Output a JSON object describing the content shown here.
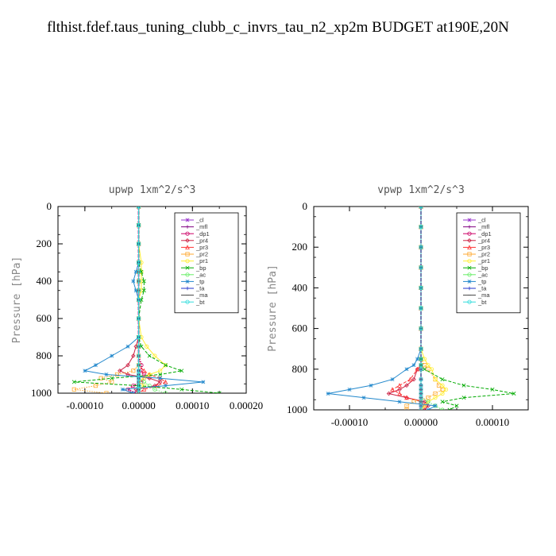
{
  "page": {
    "title": "flthist.fdef.taus_tuning_clubb_c_invrs_tau_n2_xp2m  BUDGET at190E,20N"
  },
  "chart_data": [
    {
      "type": "line",
      "title": "upwp   1xm^2/s^3",
      "xlabel": "",
      "ylabel": "Pressure [hPa]",
      "xlim": [
        -0.00015,
        0.0002
      ],
      "ylim": [
        1000,
        0
      ],
      "xticks": [
        -0.0001,
        0.0,
        0.0001,
        0.0002
      ],
      "xtick_labels": [
        "-0.00010",
        "0.00000",
        "0.00010",
        "0.00020"
      ],
      "yticks": [
        0,
        200,
        400,
        600,
        800,
        1000
      ],
      "ytick_labels": [
        "0",
        "200",
        "400",
        "600",
        "800",
        "1000"
      ],
      "legend_position": "top-right",
      "y": [
        0,
        100,
        200,
        300,
        350,
        400,
        450,
        500,
        600,
        700,
        750,
        800,
        850,
        880,
        900,
        920,
        940,
        960,
        980,
        1000
      ],
      "series": [
        {
          "name": "_cl",
          "color": "#9933cc",
          "values": [
            0,
            0,
            0,
            0,
            0,
            0,
            0,
            0,
            0,
            0,
            0,
            0,
            0,
            0,
            0,
            0,
            0,
            0,
            0,
            0
          ]
        },
        {
          "name": "_mfl",
          "color": "#800080",
          "values": [
            0,
            0,
            0,
            0,
            0,
            0,
            0,
            0,
            0,
            0,
            0,
            0,
            0,
            0,
            0,
            0,
            0,
            0,
            0,
            0
          ]
        },
        {
          "name": "_dp1",
          "color": "#cc0066",
          "values": [
            0,
            0,
            0,
            0,
            0,
            0,
            0,
            0,
            0,
            0,
            0,
            0,
            5e-06,
            5e-06,
            1e-05,
            1e-05,
            5e-06,
            -1e-05,
            -2e-05,
            -5e-06
          ]
        },
        {
          "name": "_pr4",
          "color": "#cc2244",
          "values": [
            0,
            0,
            0,
            0,
            0,
            0,
            0,
            0,
            0,
            0,
            -5e-06,
            -1e-05,
            -2e-05,
            -3.5e-05,
            -2e-05,
            2e-05,
            4e-05,
            3e-05,
            -5e-06,
            0
          ]
        },
        {
          "name": "_pr3",
          "color": "#ff3333",
          "values": [
            0,
            0,
            0,
            0,
            0,
            0,
            0,
            0,
            0,
            0,
            0,
            0,
            0,
            1e-05,
            2e-05,
            4e-05,
            5e-05,
            3.5e-05,
            1e-05,
            0
          ]
        },
        {
          "name": "_pr2",
          "color": "#ffaa33",
          "values": [
            0,
            0,
            0,
            0,
            0,
            0,
            0,
            0,
            0,
            0,
            0,
            0,
            0,
            -1e-05,
            -4e-05,
            -7e-05,
            -5e-05,
            -8e-05,
            -0.00012,
            -6e-05
          ]
        },
        {
          "name": "_pr1",
          "color": "#ffee33",
          "values": [
            0,
            0,
            0,
            5e-06,
            5e-06,
            5e-06,
            5e-06,
            0,
            0,
            5e-06,
            1.5e-05,
            3e-05,
            5e-05,
            4e-05,
            2e-05,
            1e-05,
            0,
            1e-05,
            0,
            0
          ]
        },
        {
          "name": "_bp",
          "color": "#00aa00",
          "values": [
            0,
            0,
            0,
            0,
            5e-06,
            1e-05,
            1e-05,
            5e-06,
            0,
            0,
            5e-06,
            2e-05,
            5e-05,
            8e-05,
            4e-05,
            -5e-05,
            -0.00012,
            0,
            8e-05,
            0.00015
          ]
        },
        {
          "name": "_ac",
          "color": "#66ee66",
          "values": [
            0,
            0,
            0,
            0,
            0,
            0,
            0,
            0,
            0,
            0,
            0,
            0,
            0,
            0,
            0,
            0,
            1e-05,
            2e-05,
            3e-05,
            5e-05
          ]
        },
        {
          "name": "_tp",
          "color": "#2288cc",
          "values": [
            0,
            0,
            0,
            0,
            -5e-06,
            -1e-05,
            -5e-06,
            0,
            0,
            0,
            -2e-05,
            -5e-05,
            -8e-05,
            -0.0001,
            -6e-05,
            4e-05,
            0.00012,
            5e-05,
            -3e-05,
            -1e-05
          ]
        },
        {
          "name": "_ta",
          "color": "#2233cc",
          "values": [
            0,
            0,
            0,
            0,
            0,
            0,
            0,
            0,
            0,
            0,
            0,
            0,
            0,
            0,
            0,
            0,
            0,
            0,
            0,
            0
          ]
        },
        {
          "name": "_ma",
          "color": "#444444",
          "values": [
            0,
            0,
            0,
            0,
            0,
            0,
            0,
            0,
            0,
            0,
            0,
            0,
            0,
            0,
            0,
            0,
            0,
            0,
            0,
            0
          ]
        },
        {
          "name": "_bt",
          "color": "#33dddd",
          "values": [
            0,
            0,
            0,
            0,
            0,
            0,
            0,
            0,
            0,
            0,
            0,
            0,
            0,
            0,
            0,
            0,
            0,
            0,
            0,
            0
          ]
        }
      ]
    },
    {
      "type": "line",
      "title": "vpwp   1xm^2/s^3",
      "xlabel": "",
      "ylabel": "Pressure [hPa]",
      "xlim": [
        -0.00015,
        0.00015
      ],
      "ylim": [
        1000,
        0
      ],
      "xticks": [
        -0.0001,
        0.0,
        0.0001
      ],
      "xtick_labels": [
        "-0.00010",
        "0.00000",
        "0.00010"
      ],
      "yticks": [
        0,
        200,
        400,
        600,
        800,
        1000
      ],
      "ytick_labels": [
        "0",
        "200",
        "400",
        "600",
        "800",
        "1000"
      ],
      "legend_position": "top-right",
      "y": [
        0,
        100,
        200,
        300,
        400,
        500,
        600,
        700,
        750,
        780,
        800,
        850,
        880,
        900,
        920,
        940,
        960,
        980,
        1000
      ],
      "series": [
        {
          "name": "_cl",
          "color": "#9933cc",
          "values": [
            0,
            0,
            0,
            0,
            0,
            0,
            0,
            0,
            0,
            0,
            0,
            0,
            0,
            0,
            0,
            0,
            0,
            0,
            0
          ]
        },
        {
          "name": "_mfl",
          "color": "#800080",
          "values": [
            0,
            0,
            0,
            0,
            0,
            0,
            0,
            0,
            0,
            0,
            0,
            0,
            0,
            0,
            0,
            0,
            0,
            0,
            0
          ]
        },
        {
          "name": "_dp1",
          "color": "#cc0066",
          "values": [
            0,
            0,
            0,
            0,
            0,
            0,
            0,
            0,
            0,
            0,
            0,
            0,
            0,
            0,
            0,
            0,
            0,
            0,
            0
          ]
        },
        {
          "name": "_pr4",
          "color": "#cc2244",
          "values": [
            0,
            0,
            0,
            0,
            0,
            0,
            0,
            0,
            0,
            0,
            -5e-06,
            -1e-05,
            -2e-05,
            -3e-05,
            -4.5e-05,
            -2e-05,
            5e-06,
            1e-05,
            5e-06
          ]
        },
        {
          "name": "_pr3",
          "color": "#ff3333",
          "values": [
            0,
            0,
            0,
            0,
            0,
            0,
            0,
            0,
            0,
            0,
            -5e-06,
            -1.5e-05,
            -3e-05,
            -4e-05,
            -3e-05,
            -2e-05,
            0,
            5e-06,
            0
          ]
        },
        {
          "name": "_pr2",
          "color": "#ffaa33",
          "values": [
            0,
            0,
            0,
            0,
            0,
            0,
            0,
            0,
            0,
            5e-06,
            1e-05,
            2e-05,
            2.5e-05,
            3e-05,
            2e-05,
            1e-05,
            -1e-05,
            -2e-05,
            -2e-05
          ]
        },
        {
          "name": "_pr1",
          "color": "#ffee33",
          "values": [
            0,
            0,
            0,
            0,
            0,
            0,
            0,
            0,
            5e-06,
            1e-05,
            1.5e-05,
            2e-05,
            3e-05,
            3.5e-05,
            3e-05,
            2e-05,
            1e-05,
            5e-06,
            0
          ]
        },
        {
          "name": "_bp",
          "color": "#00aa00",
          "values": [
            0,
            0,
            0,
            0,
            0,
            0,
            0,
            0,
            0,
            0,
            5e-06,
            3e-05,
            6e-05,
            0.0001,
            0.00013,
            6e-05,
            3e-05,
            5e-05,
            4e-05
          ]
        },
        {
          "name": "_ac",
          "color": "#66ee66",
          "values": [
            0,
            0,
            0,
            0,
            0,
            0,
            0,
            0,
            0,
            0,
            0,
            0,
            0,
            0,
            0,
            0,
            1e-05,
            2e-05,
            3e-05
          ]
        },
        {
          "name": "_tp",
          "color": "#2288cc",
          "values": [
            0,
            0,
            0,
            0,
            0,
            0,
            0,
            0,
            -5e-06,
            -1e-05,
            -2e-05,
            -4e-05,
            -7e-05,
            -0.0001,
            -0.00013,
            -8e-05,
            -3e-05,
            2e-05,
            1e-05
          ]
        },
        {
          "name": "_ta",
          "color": "#2233cc",
          "values": [
            0,
            0,
            0,
            0,
            0,
            0,
            0,
            0,
            0,
            0,
            0,
            0,
            0,
            0,
            0,
            0,
            0,
            0,
            0
          ]
        },
        {
          "name": "_ma",
          "color": "#444444",
          "values": [
            0,
            0,
            0,
            0,
            0,
            0,
            0,
            0,
            0,
            0,
            0,
            0,
            0,
            0,
            0,
            0,
            0,
            0,
            0
          ]
        },
        {
          "name": "_bt",
          "color": "#33dddd",
          "values": [
            0,
            0,
            0,
            0,
            0,
            0,
            0,
            0,
            0,
            0,
            0,
            0,
            0,
            0,
            0,
            0,
            0,
            0,
            0
          ]
        }
      ]
    }
  ]
}
